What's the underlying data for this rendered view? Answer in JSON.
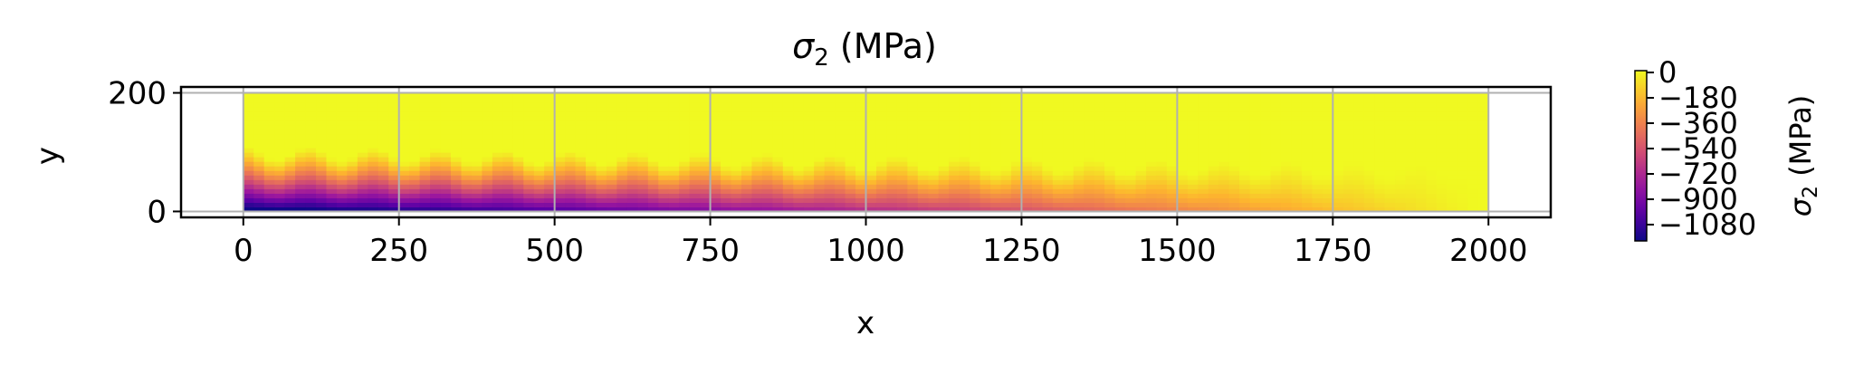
{
  "chart_data": {
    "type": "heatmap",
    "title_symbol": "σ",
    "title_subscript": "2",
    "title_suffix": " (MPa)",
    "xlabel": "x",
    "ylabel": "y",
    "xlim": [
      -100,
      2100
    ],
    "ylim": [
      -10,
      210
    ],
    "x_ticks": [
      0,
      250,
      500,
      750,
      1000,
      1250,
      1500,
      1750,
      2000
    ],
    "y_ticks": [
      0,
      200
    ],
    "grid": true,
    "domain_x": [
      0,
      2000
    ],
    "domain_y": [
      0,
      200
    ],
    "colormap": "plasma",
    "color_range": [
      -1080,
      0
    ],
    "colorbar_ticks": [
      "0",
      "−180",
      "−360",
      "−540",
      "−720",
      "−900",
      "−1080"
    ],
    "colorbar_label_symbol": "σ",
    "colorbar_label_subscript": "2",
    "colorbar_label_suffix": " (MPa)",
    "colors": [
      "#0d0887",
      "#5c01a6",
      "#9c179e",
      "#cc4778",
      "#ed7953",
      "#fdb42f",
      "#f0f921"
    ],
    "grid_color": "#b0b0b0"
  }
}
